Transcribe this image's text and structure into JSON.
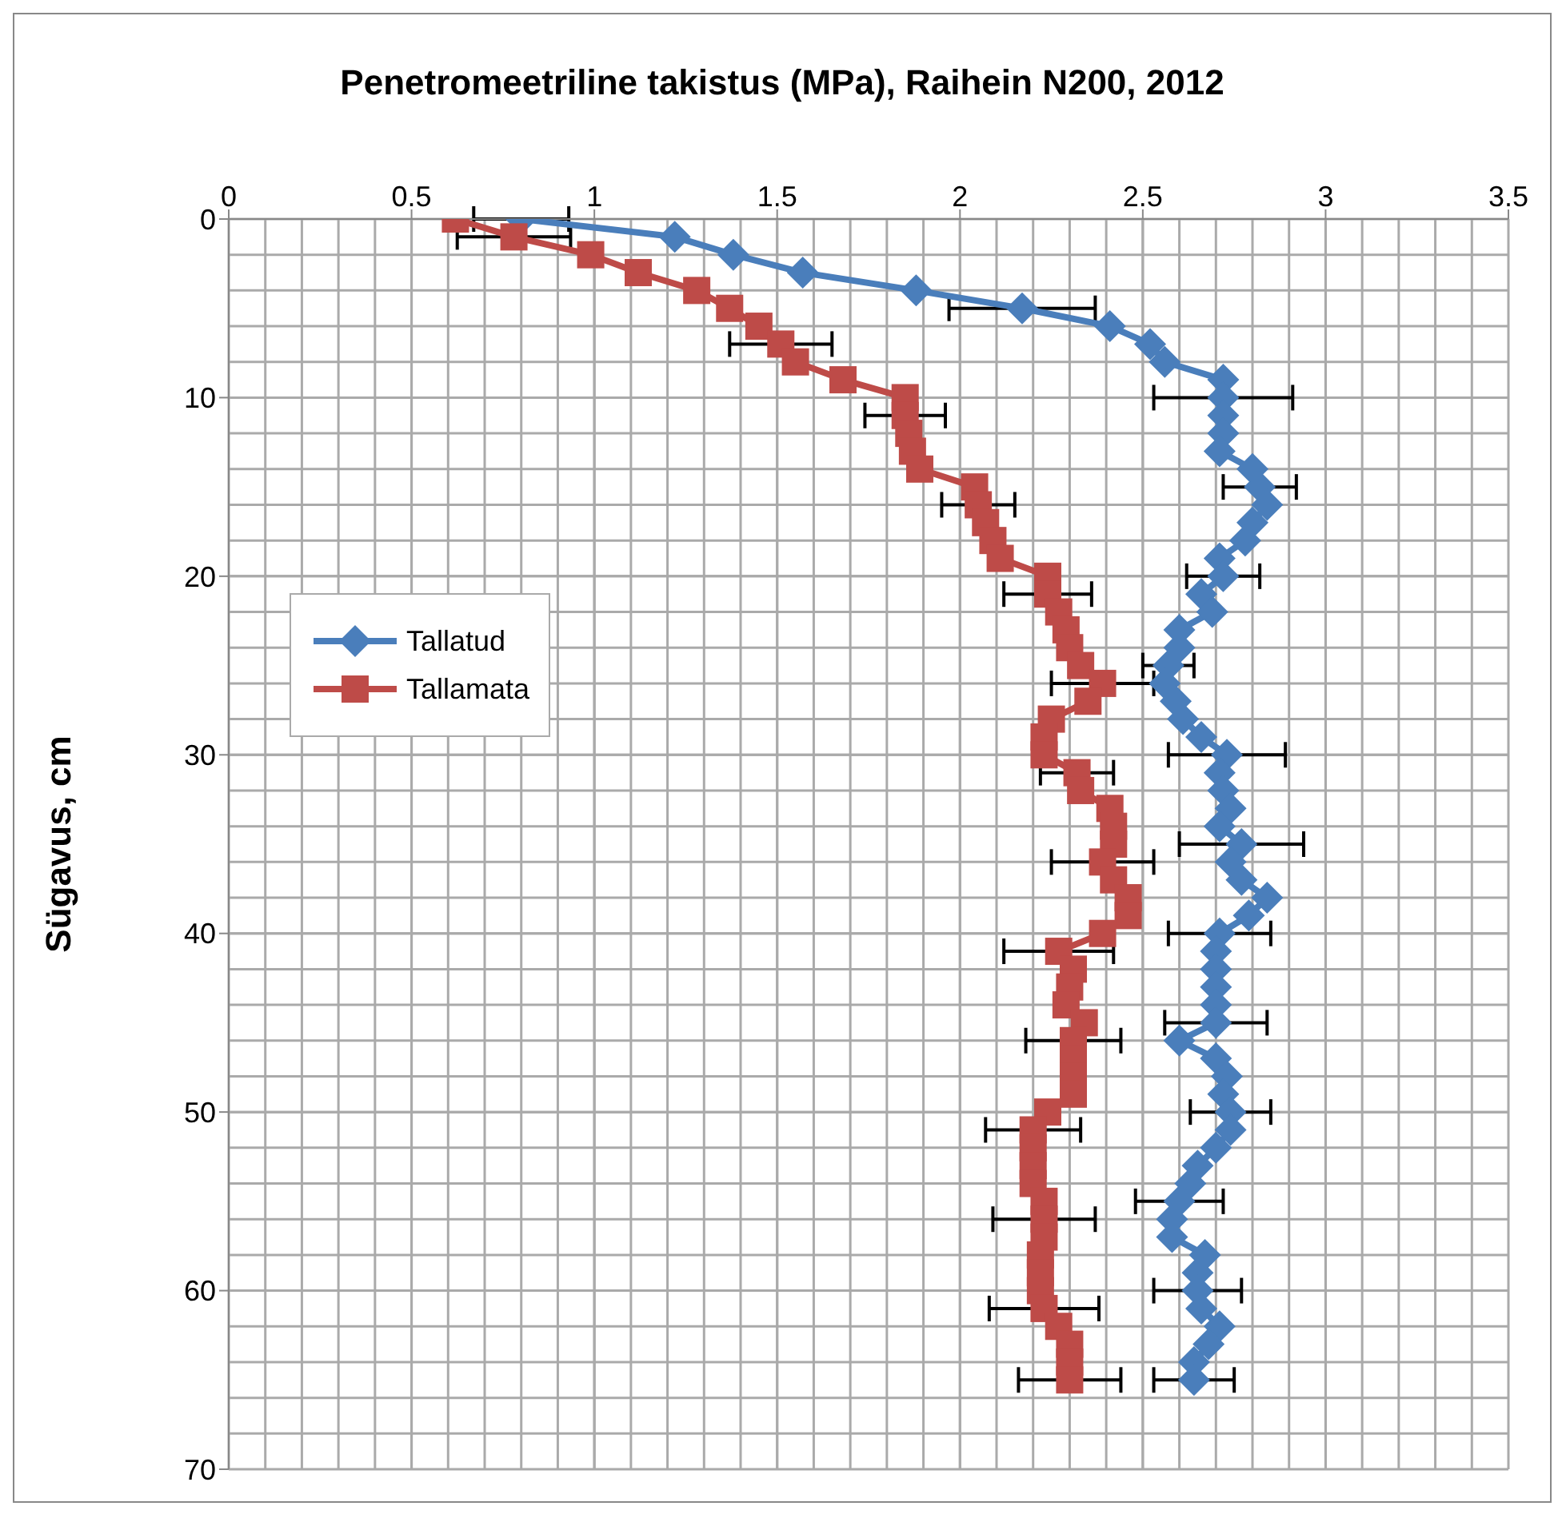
{
  "chart_data": {
    "type": "line",
    "title": "Penetromeetriline takistus (MPa), Raihein N200, 2012",
    "ylabel": "Sügavus, cm",
    "xlim": [
      0,
      3.5
    ],
    "xticks": [
      0,
      0.5,
      1,
      1.5,
      2,
      2.5,
      3,
      3.5
    ],
    "ylim": [
      70,
      0
    ],
    "yticks": [
      0,
      10,
      20,
      30,
      40,
      50,
      60,
      70
    ],
    "grid": true,
    "legend": "left",
    "series": [
      {
        "name": "Tallatud",
        "color": "#4a7ebb",
        "marker": "diamond",
        "x": [
          0.8,
          1.22,
          1.38,
          1.57,
          1.88,
          2.17,
          2.41,
          2.52,
          2.56,
          2.72,
          2.72,
          2.72,
          2.72,
          2.71,
          2.8,
          2.82,
          2.84,
          2.8,
          2.78,
          2.71,
          2.72,
          2.66,
          2.69,
          2.6,
          2.6,
          2.57,
          2.56,
          2.59,
          2.61,
          2.66,
          2.73,
          2.71,
          2.72,
          2.74,
          2.71,
          2.77,
          2.74,
          2.77,
          2.84,
          2.79,
          2.71,
          2.7,
          2.7,
          2.7,
          2.7,
          2.7,
          2.6,
          2.7,
          2.73,
          2.72,
          2.74,
          2.74,
          2.7,
          2.65,
          2.63,
          2.6,
          2.58,
          2.58,
          2.67,
          2.65,
          2.65,
          2.66,
          2.71,
          2.68,
          2.64,
          2.64
        ],
        "values": [
          0,
          1,
          2,
          3,
          4,
          5,
          6,
          7,
          8,
          9,
          10,
          11,
          12,
          13,
          14,
          15,
          16,
          17,
          18,
          19,
          20,
          21,
          22,
          23,
          24,
          25,
          26,
          27,
          28,
          29,
          30,
          31,
          32,
          33,
          34,
          35,
          36,
          37,
          38,
          39,
          40,
          41,
          42,
          43,
          44,
          45,
          46,
          47,
          48,
          49,
          50,
          51,
          52,
          53,
          54,
          55,
          56,
          57,
          58,
          59,
          60,
          61,
          62,
          63,
          64,
          65
        ],
        "xerrors": [
          0.13,
          null,
          null,
          null,
          null,
          0.2,
          null,
          null,
          null,
          null,
          0.19,
          null,
          null,
          null,
          null,
          0.1,
          null,
          null,
          null,
          null,
          0.1,
          null,
          null,
          null,
          null,
          0.07,
          null,
          null,
          null,
          null,
          0.16,
          null,
          null,
          null,
          null,
          0.17,
          null,
          null,
          null,
          null,
          0.14,
          null,
          null,
          null,
          null,
          0.14,
          null,
          null,
          null,
          null,
          0.11,
          null,
          null,
          null,
          null,
          0.12,
          null,
          null,
          null,
          null,
          0.12,
          null,
          null,
          null,
          null,
          0.11
        ]
      },
      {
        "name": "Tallamata",
        "color": "#be4b48",
        "marker": "square",
        "x": [
          0.62,
          0.78,
          0.99,
          1.12,
          1.28,
          1.37,
          1.45,
          1.51,
          1.55,
          1.68,
          1.85,
          1.85,
          1.86,
          1.87,
          1.89,
          2.04,
          2.05,
          2.07,
          2.09,
          2.11,
          2.24,
          2.24,
          2.27,
          2.29,
          2.3,
          2.33,
          2.39,
          2.35,
          2.25,
          2.23,
          2.23,
          2.32,
          2.33,
          2.41,
          2.42,
          2.42,
          2.39,
          2.42,
          2.46,
          2.46,
          2.39,
          2.27,
          2.31,
          2.3,
          2.29,
          2.34,
          2.31,
          2.31,
          2.31,
          2.31,
          2.24,
          2.2,
          2.2,
          2.2,
          2.2,
          2.23,
          2.23,
          2.23,
          2.22,
          2.22,
          2.22,
          2.23,
          2.27,
          2.3,
          2.3,
          2.3
        ],
        "values": [
          0,
          1,
          2,
          3,
          4,
          5,
          6,
          7,
          8,
          9,
          10,
          11,
          12,
          13,
          14,
          15,
          16,
          17,
          18,
          19,
          20,
          21,
          22,
          23,
          24,
          25,
          26,
          27,
          28,
          29,
          30,
          31,
          32,
          33,
          34,
          35,
          36,
          37,
          38,
          39,
          40,
          41,
          42,
          43,
          44,
          45,
          46,
          47,
          48,
          49,
          50,
          51,
          52,
          53,
          54,
          55,
          56,
          57,
          58,
          59,
          60,
          61,
          62,
          63,
          64,
          65
        ],
        "xerrors": [
          null,
          0.155,
          null,
          null,
          null,
          null,
          null,
          0.14,
          null,
          null,
          null,
          0.11,
          null,
          null,
          null,
          null,
          0.1,
          null,
          null,
          null,
          null,
          0.12,
          null,
          null,
          null,
          null,
          0.14,
          null,
          null,
          null,
          null,
          0.1,
          null,
          null,
          null,
          null,
          0.14,
          null,
          null,
          null,
          null,
          0.15,
          null,
          null,
          null,
          null,
          0.13,
          null,
          null,
          null,
          null,
          0.13,
          null,
          null,
          null,
          null,
          0.14,
          null,
          null,
          null,
          null,
          0.15,
          null,
          null,
          null,
          0.14
        ]
      }
    ]
  }
}
